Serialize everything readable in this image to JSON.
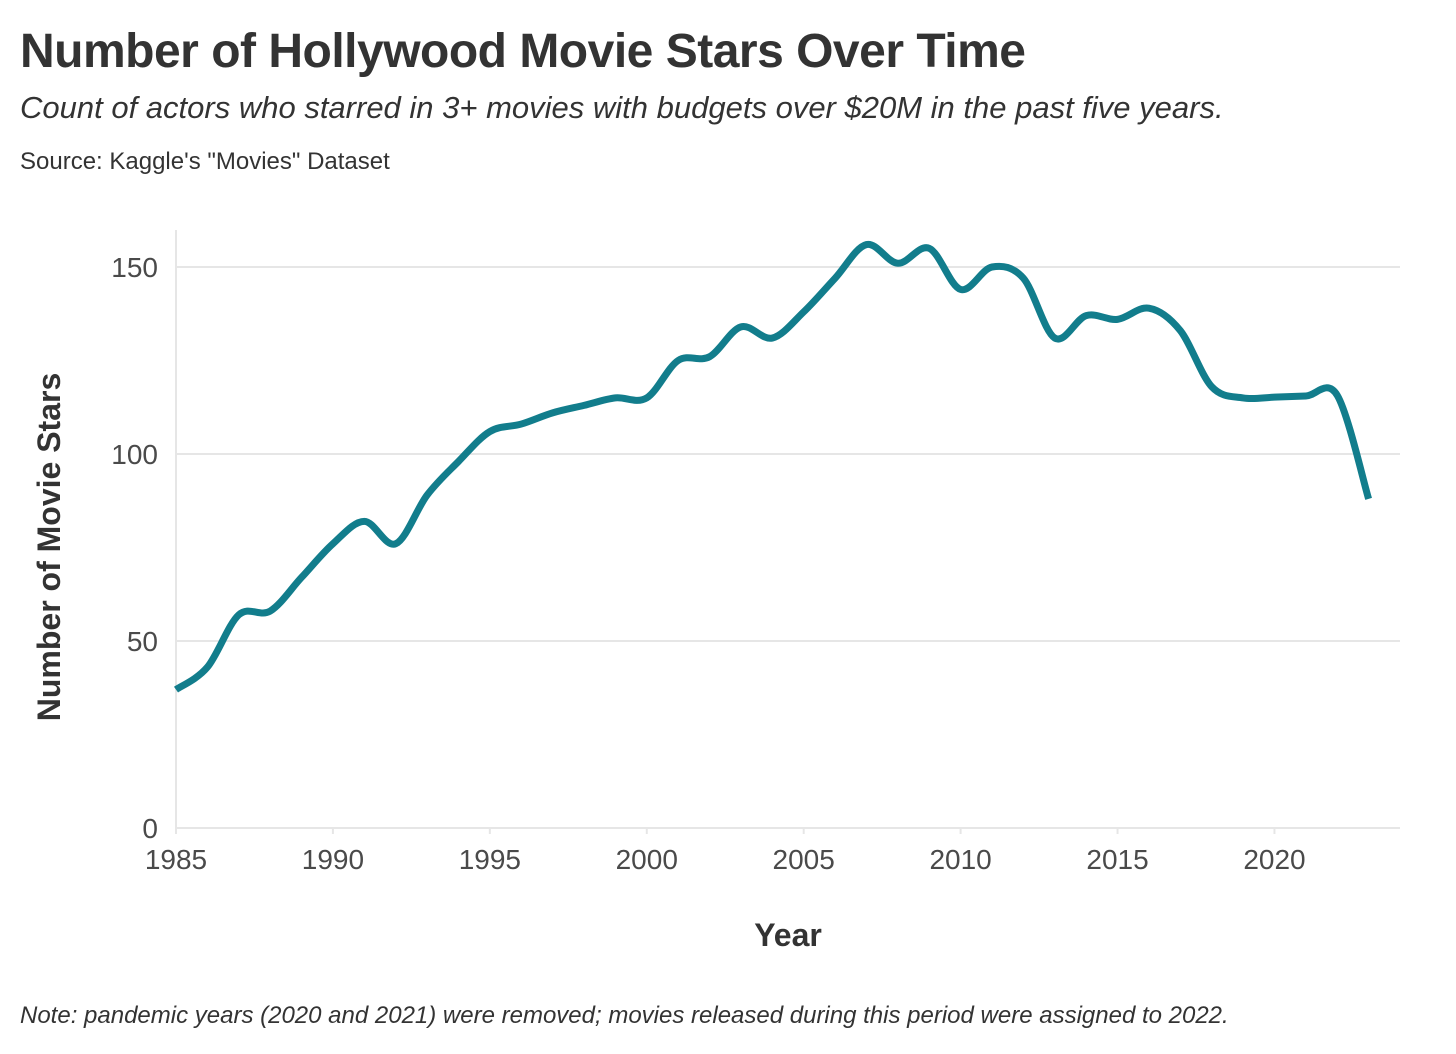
{
  "chart_data": {
    "type": "line",
    "title": "Number of Hollywood Movie Stars Over Time",
    "subtitle": "Count of actors who starred in 3+ movies with budgets over $20M in the past five years.",
    "source": "Source: Kaggle's \"Movies\" Dataset",
    "note": "Note: pandemic years (2020 and 2021) were removed; movies released during this period were assigned to 2022.",
    "xlabel": "Year",
    "ylabel": "Number of Movie Stars",
    "xlim": [
      1985,
      2024
    ],
    "ylim": [
      0,
      160
    ],
    "xticks": [
      1985,
      1990,
      1995,
      2000,
      2005,
      2010,
      2015,
      2020
    ],
    "yticks": [
      0,
      50,
      100,
      150
    ],
    "grid": "horizontal",
    "series": [
      {
        "name": "Movie Stars",
        "color": "#127d8c",
        "x": [
          1985,
          1986,
          1987,
          1988,
          1989,
          1990,
          1991,
          1992,
          1993,
          1994,
          1995,
          1996,
          1997,
          1998,
          1999,
          2000,
          2001,
          2002,
          2003,
          2004,
          2005,
          2006,
          2007,
          2008,
          2009,
          2010,
          2011,
          2012,
          2013,
          2014,
          2015,
          2016,
          2017,
          2018,
          2019,
          2020,
          2021,
          2022,
          2023
        ],
        "values": [
          37,
          43,
          57,
          58,
          67,
          76,
          82,
          76,
          89,
          98,
          106,
          108,
          111,
          113,
          115,
          115,
          125,
          126,
          134,
          131,
          138,
          147,
          156,
          151,
          155,
          144,
          150,
          147,
          131,
          137,
          136,
          139,
          133,
          118,
          115,
          115.2,
          115.5,
          115.7,
          88
        ]
      }
    ]
  }
}
